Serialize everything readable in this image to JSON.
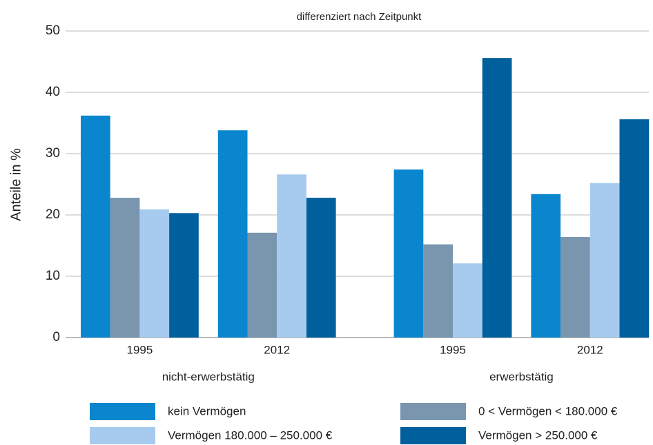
{
  "chart_data": {
    "type": "bar",
    "subtitle": "differenziert nach Zeitpunkt",
    "y_label": "Anteile in %",
    "categories": [
      "1995",
      "2012",
      "1995",
      "2012"
    ],
    "groups": [
      "nicht-erwerbstätig",
      "erwerbstätig"
    ],
    "series": [
      {
        "name": "kein Vermögen",
        "color": "#0a86cf",
        "values": [
          36.2,
          33.8,
          27.4,
          23.4
        ]
      },
      {
        "name": "0 < Vermögen < 180.000 €",
        "color": "#7a96ae",
        "values": [
          22.8,
          17.1,
          15.2,
          16.4
        ]
      },
      {
        "name": "Vermögen 180.000 – 250.000 €",
        "color": "#a7cbee",
        "values": [
          20.9,
          26.6,
          12.1,
          25.2
        ]
      },
      {
        "name": "Vermögen > 250.000 €",
        "color": "#005f9d",
        "values": [
          20.3,
          22.8,
          45.6,
          35.6
        ]
      }
    ],
    "ylim": [
      0,
      50
    ],
    "yticks": [
      0,
      10,
      20,
      30,
      40,
      50
    ],
    "grid": true
  }
}
